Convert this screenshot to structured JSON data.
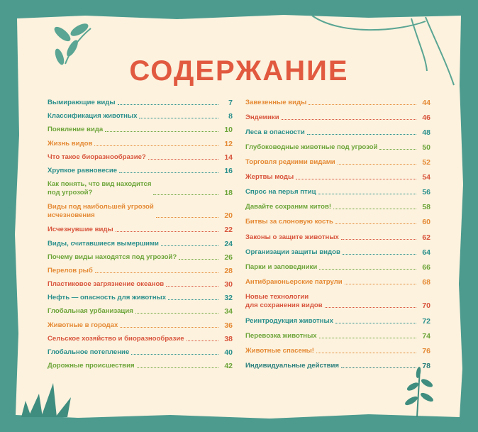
{
  "header": {
    "title": "СОДЕРЖАНИЕ"
  },
  "columns": [
    [
      {
        "lines": [
          "Вымирающие виды"
        ],
        "page": "7",
        "color": "#2a8f8c"
      },
      {
        "lines": [
          "Классификация животных"
        ],
        "page": "8",
        "color": "#2a8f8c"
      },
      {
        "lines": [
          "Появление вида"
        ],
        "page": "10",
        "color": "#6ea53a"
      },
      {
        "lines": [
          "Жизнь видов"
        ],
        "page": "12",
        "color": "#e58a35"
      },
      {
        "lines": [
          "Что такое биоразнообразие?"
        ],
        "page": "14",
        "color": "#d9553d"
      },
      {
        "lines": [
          "Хрупкое равновесие"
        ],
        "page": "16",
        "color": "#2a8f8c"
      },
      {
        "lines": [
          "Как понять, что вид находится",
          "под угрозой?"
        ],
        "page": "18",
        "color": "#6ea53a"
      },
      {
        "lines": [
          "Виды под наибольшей угрозой",
          "исчезновения"
        ],
        "page": "20",
        "color": "#e58a35"
      },
      {
        "lines": [
          "Исчезнувшие виды"
        ],
        "page": "22",
        "color": "#d9553d"
      },
      {
        "lines": [
          "Виды, считавшиеся вымершими"
        ],
        "page": "24",
        "color": "#2a8f8c"
      },
      {
        "lines": [
          "Почему виды находятся под угрозой?"
        ],
        "page": "26",
        "color": "#6ea53a"
      },
      {
        "lines": [
          "Перелов рыб"
        ],
        "page": "28",
        "color": "#e58a35"
      },
      {
        "lines": [
          "Пластиковое загрязнение океанов"
        ],
        "page": "30",
        "color": "#d9553d"
      },
      {
        "lines": [
          "Нефть — опасность для животных"
        ],
        "page": "32",
        "color": "#2a8f8c"
      },
      {
        "lines": [
          "Глобальная урбанизация"
        ],
        "page": "34",
        "color": "#6ea53a"
      },
      {
        "lines": [
          "Животные в городах"
        ],
        "page": "36",
        "color": "#e58a35"
      },
      {
        "lines": [
          "Сельское хозяйство и биоразнообразие"
        ],
        "page": "38",
        "color": "#d9553d"
      },
      {
        "lines": [
          "Глобальное потепление"
        ],
        "page": "40",
        "color": "#2a8f8c"
      },
      {
        "lines": [
          "Дорожные происшествия"
        ],
        "page": "42",
        "color": "#6ea53a"
      }
    ],
    [
      {
        "lines": [
          "Завезенные виды"
        ],
        "page": "44",
        "color": "#e58a35"
      },
      {
        "lines": [
          "Эндемики"
        ],
        "page": "46",
        "color": "#d9553d"
      },
      {
        "lines": [
          "Леса в опасности"
        ],
        "page": "48",
        "color": "#2a8f8c"
      },
      {
        "lines": [
          "Глубоководные животные под угрозой"
        ],
        "page": "50",
        "color": "#6ea53a"
      },
      {
        "lines": [
          "Торговля редкими видами"
        ],
        "page": "52",
        "color": "#e58a35"
      },
      {
        "lines": [
          "Жертвы моды"
        ],
        "page": "54",
        "color": "#d9553d"
      },
      {
        "lines": [
          "Спрос на перья птиц"
        ],
        "page": "56",
        "color": "#2a8f8c"
      },
      {
        "lines": [
          "Давайте сохраним китов!"
        ],
        "page": "58",
        "color": "#6ea53a"
      },
      {
        "lines": [
          "Битвы за слоновую кость"
        ],
        "page": "60",
        "color": "#e58a35"
      },
      {
        "lines": [
          "Законы о защите животных"
        ],
        "page": "62",
        "color": "#d9553d"
      },
      {
        "lines": [
          "Организации защиты видов"
        ],
        "page": "64",
        "color": "#2a8f8c"
      },
      {
        "lines": [
          "Парки и заповедники"
        ],
        "page": "66",
        "color": "#6ea53a"
      },
      {
        "lines": [
          "Антибраконьерские патрули"
        ],
        "page": "68",
        "color": "#e58a35"
      },
      {
        "lines": [
          "Новые технологии",
          "для сохранения видов"
        ],
        "page": "70",
        "color": "#d9553d"
      },
      {
        "lines": [
          "Реинтродукция животных"
        ],
        "page": "72",
        "color": "#2a8f8c"
      },
      {
        "lines": [
          "Перевозка животных"
        ],
        "page": "74",
        "color": "#6ea53a"
      },
      {
        "lines": [
          "Животные спасены!"
        ],
        "page": "76",
        "color": "#e58a35"
      },
      {
        "lines": [
          "Индивидуальные действия"
        ],
        "page": "78",
        "color": "#2a7f7c"
      }
    ]
  ]
}
